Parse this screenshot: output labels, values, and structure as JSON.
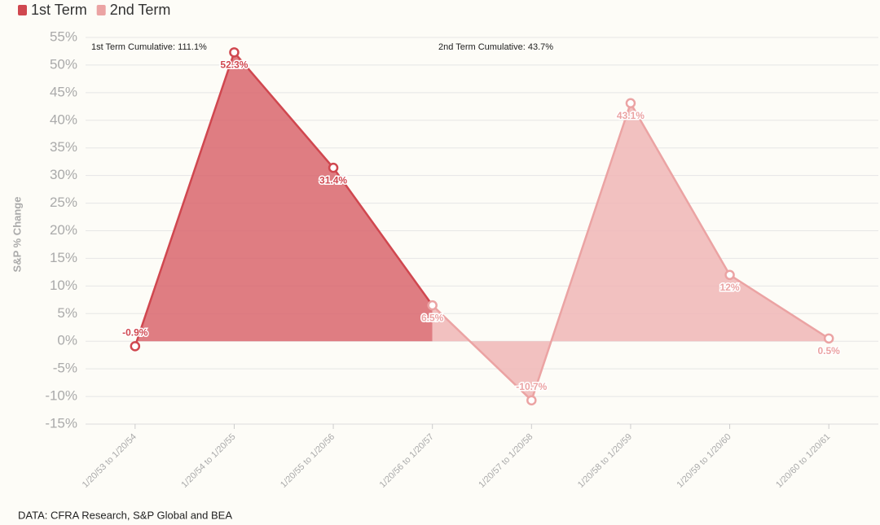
{
  "chart_data": {
    "type": "area",
    "y_label": "S&P % Change",
    "annotations": [
      "1st Term Cumulative: 111.1%",
      "2nd Term Cumulative: 43.7%"
    ],
    "source": "DATA: CFRA Research, S&P Global and BEA",
    "categories": [
      "1/20/53 to 1/20/54",
      "1/20/54 to 1/20/55",
      "1/20/55 to 1/20/56",
      "1/20/56 to 1/20/57",
      "1/20/57 to 1/20/58",
      "1/20/58 to 1/20/59",
      "1/20/59 to 1/20/60",
      "1/20/60 to 1/20/61"
    ],
    "series": [
      {
        "name": "1st Term",
        "color": "#d0474f",
        "fill": "#d9666d",
        "values": [
          -0.9,
          52.3,
          31.4,
          6.5,
          null,
          null,
          null,
          null
        ],
        "value_labels": [
          "-0.9%",
          "52.3%",
          "31.4%",
          null,
          null,
          null,
          null,
          null
        ]
      },
      {
        "name": "2nd Term",
        "color": "#eba3a3",
        "fill": "#f0b6b6",
        "values": [
          null,
          null,
          null,
          6.5,
          -10.7,
          43.1,
          12,
          0.5
        ],
        "value_labels": [
          null,
          null,
          null,
          "6.5%",
          "-10.7%",
          "43.1%",
          "12%",
          "0.5%"
        ]
      }
    ],
    "ylim": [
      -15,
      55
    ],
    "yticks": [
      {
        "value": -15,
        "label": "-15%"
      },
      {
        "value": -10,
        "label": "-10%"
      },
      {
        "value": -5,
        "label": "-5%"
      },
      {
        "value": 0,
        "label": "0%"
      },
      {
        "value": 5,
        "label": "5%"
      },
      {
        "value": 10,
        "label": "10%"
      },
      {
        "value": 15,
        "label": "15%"
      },
      {
        "value": 20,
        "label": "20%"
      },
      {
        "value": 25,
        "label": "25%"
      },
      {
        "value": 30,
        "label": "30%"
      },
      {
        "value": 35,
        "label": "35%"
      },
      {
        "value": 40,
        "label": "40%"
      },
      {
        "value": 45,
        "label": "45%"
      },
      {
        "value": 50,
        "label": "50%"
      },
      {
        "value": 55,
        "label": "55%"
      }
    ],
    "grid": true,
    "legend": "top-left"
  }
}
